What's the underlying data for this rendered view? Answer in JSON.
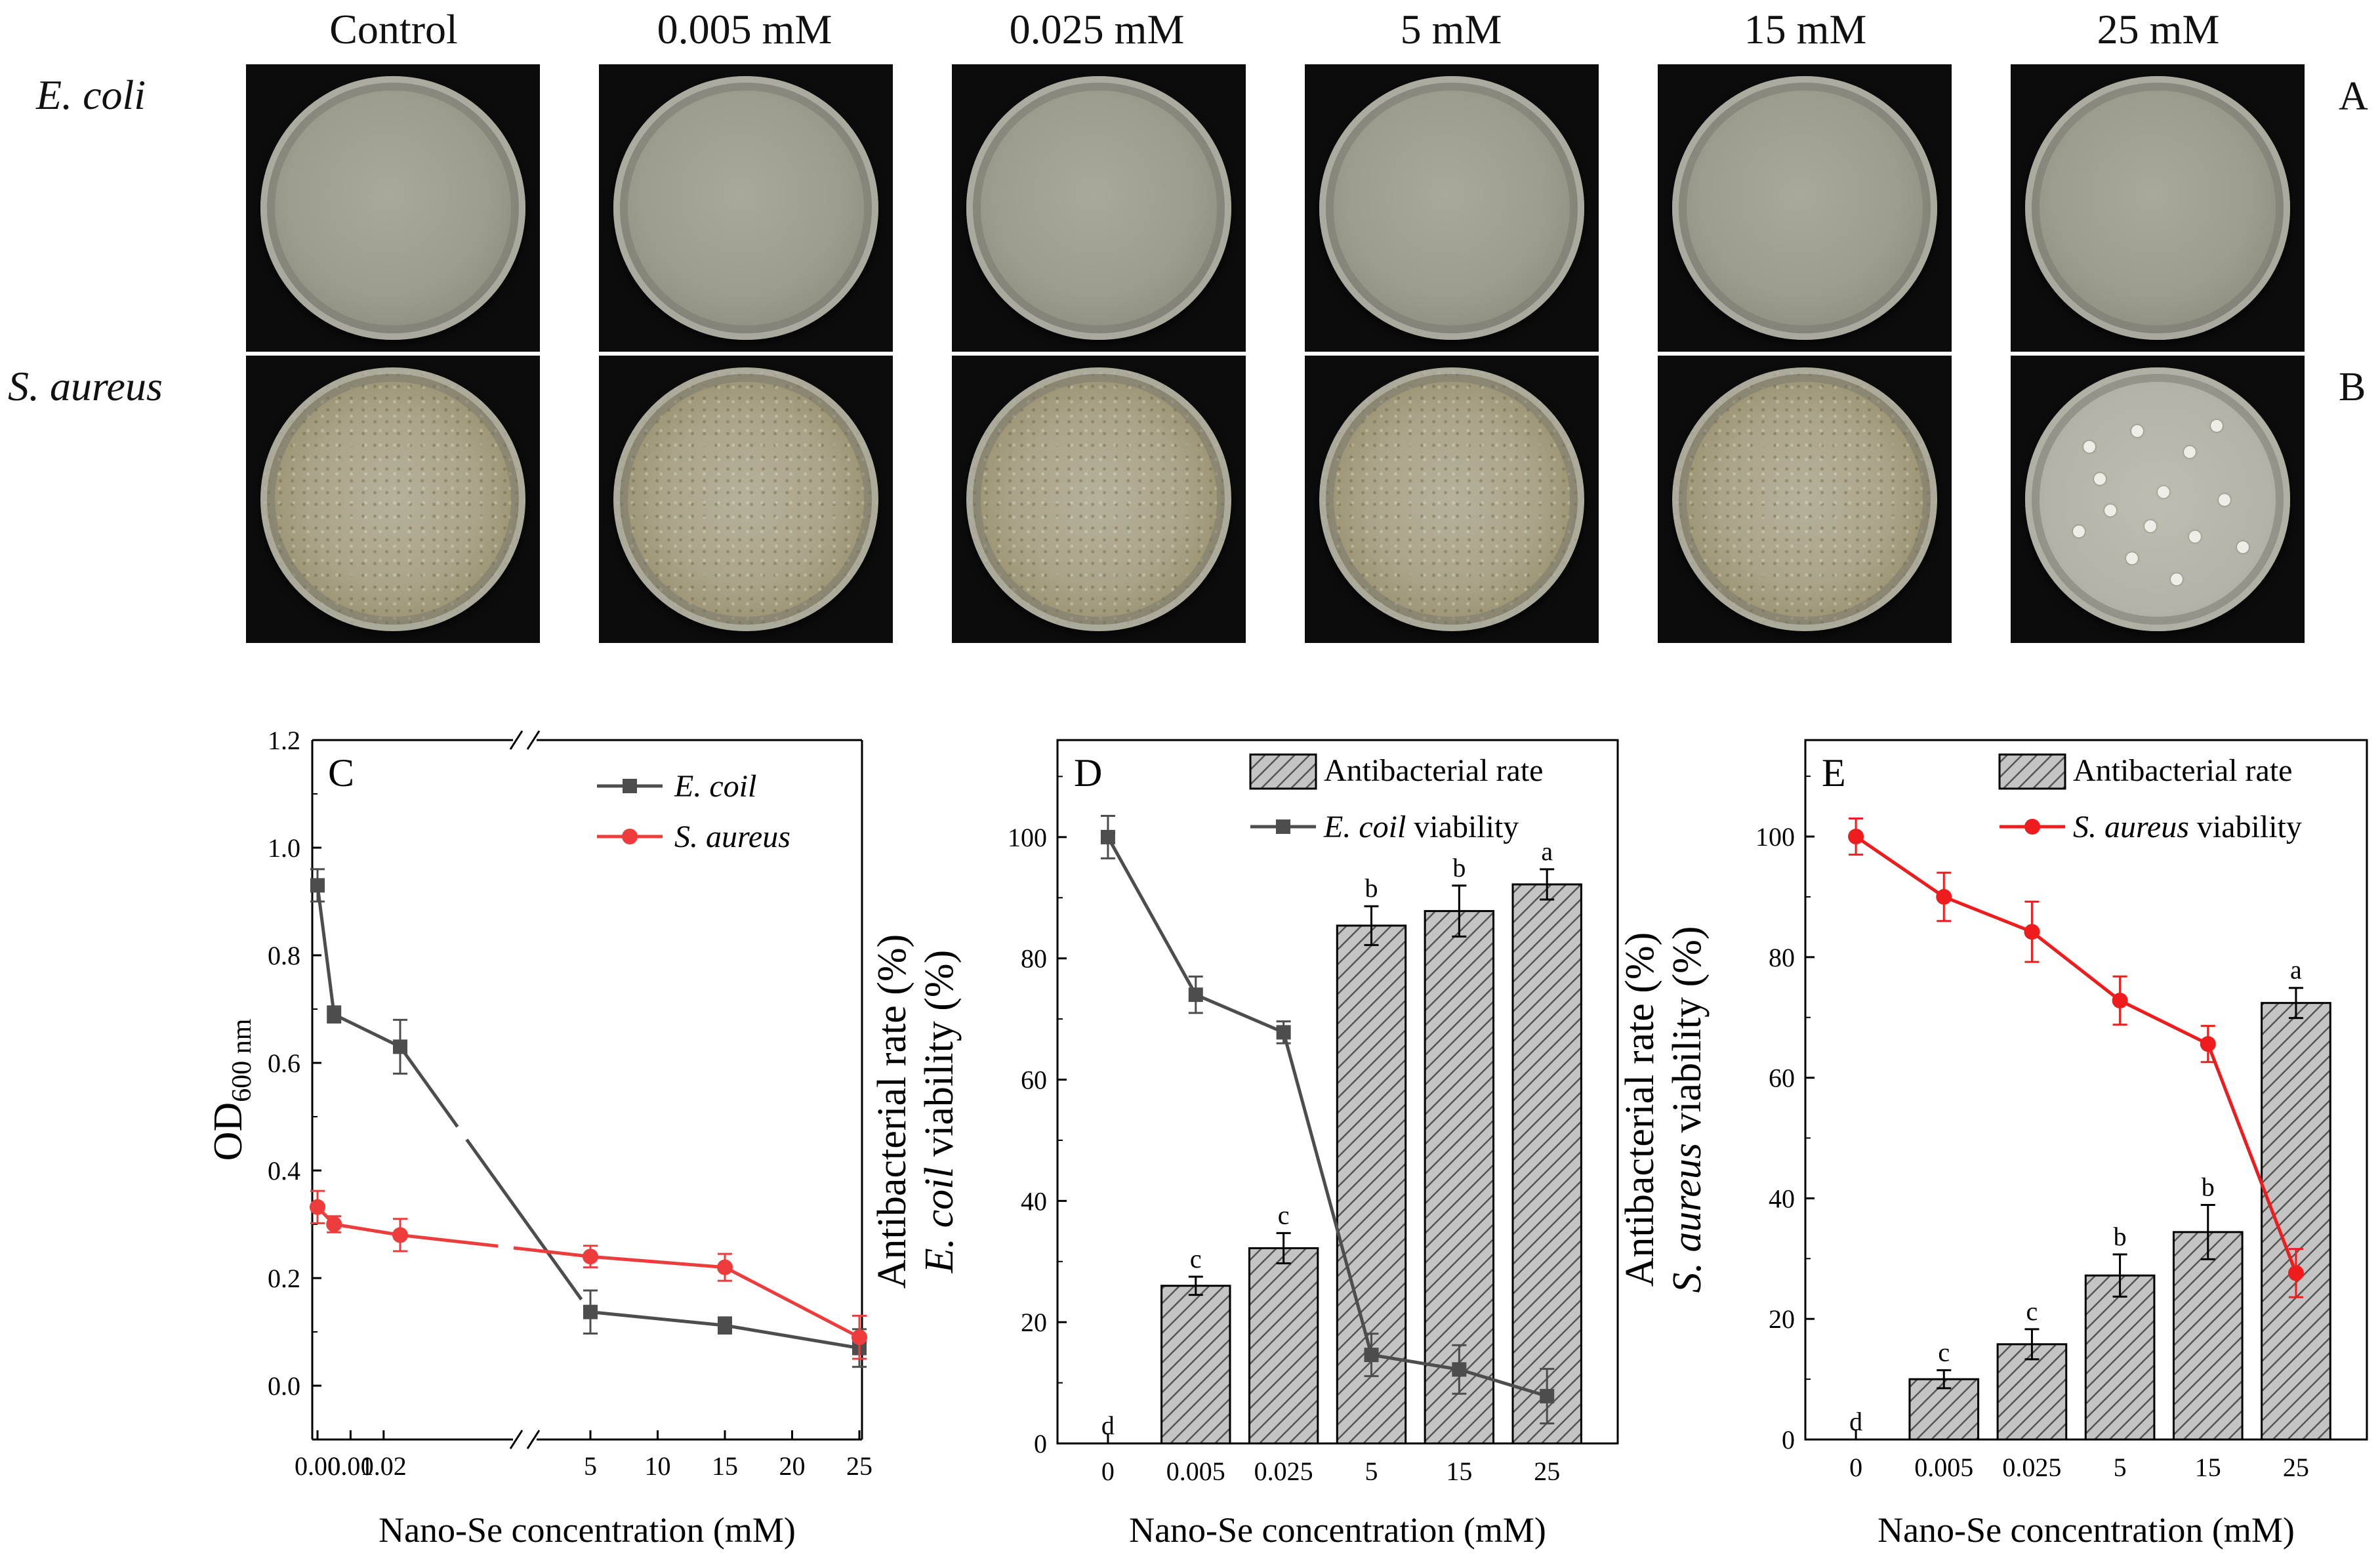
{
  "columns": [
    "Control",
    "0.005 mM",
    "0.025 mM",
    "5 mM",
    "15 mM",
    "25 mM"
  ],
  "rows": [
    {
      "label": "E. coli",
      "letter": "A"
    },
    {
      "label": "S. aureus",
      "letter": "B"
    }
  ],
  "chart_data": [
    {
      "panel": "C",
      "type": "line",
      "xlabel": "Nano-Se concentration (mM)",
      "ylabel_main": "OD",
      "ylabel_sub": "600 nm",
      "x_ticks_left": [
        "0.00",
        "0.01",
        "0.02"
      ],
      "x_ticks_right": [
        "5",
        "10",
        "15",
        "20",
        "25"
      ],
      "y_ticks": [
        "0.0",
        "0.2",
        "0.4",
        "0.6",
        "0.8",
        "1.0",
        "1.2"
      ],
      "ylim": [
        -0.1,
        1.2
      ],
      "x": [
        0,
        0.005,
        0.025,
        5,
        15,
        25
      ],
      "series": [
        {
          "name": "E. coil",
          "values": [
            0.93,
            0.69,
            0.63,
            0.137,
            0.112,
            0.07
          ],
          "errors": [
            0.03,
            0.015,
            0.05,
            0.04,
            0.015,
            0.035
          ],
          "color": "#4d4d4d",
          "marker": "square"
        },
        {
          "name": "S. aureus",
          "values": [
            0.332,
            0.3,
            0.28,
            0.24,
            0.22,
            0.09
          ],
          "errors": [
            0.03,
            0.015,
            0.03,
            0.02,
            0.025,
            0.04
          ],
          "color": "#ee3b3b",
          "marker": "circle"
        }
      ]
    },
    {
      "panel": "D",
      "type": "bar+line",
      "xlabel": "Nano-Se concentration (mM)",
      "ylabel_line1": "Antibacterial rate (%)",
      "ylabel_line2_italic": "E. coil",
      "ylabel_line2_rest": " viability (%)",
      "categories": [
        "0",
        "0.005",
        "0.025",
        "5",
        "15",
        "25"
      ],
      "y_ticks": [
        "0",
        "20",
        "40",
        "60",
        "80",
        "100"
      ],
      "ylim": [
        0,
        116
      ],
      "legend_bar": "Antibacterial rate",
      "legend_line_italic": "E. coil",
      "legend_line_rest": " viability",
      "bar_values": [
        0,
        26,
        32.2,
        85.4,
        87.8,
        92.2
      ],
      "bar_errors": [
        0,
        1.5,
        2.5,
        3.2,
        4.2,
        2.5
      ],
      "bar_letters": [
        "d",
        "c",
        "c",
        "b",
        "b",
        "a"
      ],
      "line_values": [
        100,
        74,
        67.8,
        14.6,
        12.2,
        7.8
      ],
      "line_errors": [
        3.5,
        3,
        1.8,
        3.5,
        4,
        4.5
      ],
      "line_color": "#4d4d4d"
    },
    {
      "panel": "E",
      "type": "bar+line",
      "xlabel": "Nano-Se concentration (mM)",
      "ylabel_line1": "Antibacterial rate (%)",
      "ylabel_line2_italic": "S. aureus",
      "ylabel_line2_rest": " viability (%)",
      "categories": [
        "0",
        "0.005",
        "0.025",
        "5",
        "15",
        "25"
      ],
      "y_ticks": [
        "0",
        "20",
        "40",
        "60",
        "80",
        "100"
      ],
      "ylim": [
        0,
        116
      ],
      "legend_bar": "Antibacterial rate",
      "legend_line_italic": "S. aureus",
      "legend_line_rest": " viability",
      "bar_values": [
        0,
        10,
        15.8,
        27.2,
        34.4,
        72.4
      ],
      "bar_errors": [
        0,
        1.5,
        2.5,
        3.5,
        4.5,
        2.5
      ],
      "bar_letters": [
        "d",
        "c",
        "c",
        "b",
        "b",
        "a"
      ],
      "line_values": [
        100,
        90,
        84.2,
        72.8,
        65.6,
        27.6
      ],
      "line_errors": [
        3,
        4,
        5,
        4,
        3,
        4
      ],
      "line_color": "#ee1c1c"
    }
  ]
}
